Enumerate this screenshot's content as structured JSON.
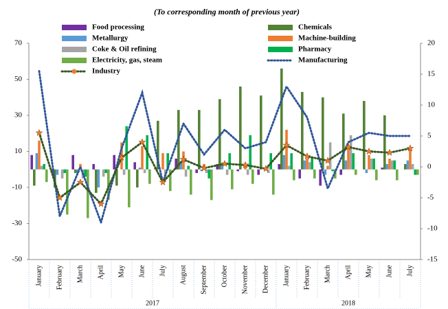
{
  "chart_data": {
    "type": "bar",
    "subtitle": "(To corresponding month of previous year)",
    "categories": [
      "January",
      "February",
      "March",
      "April",
      "May",
      "June",
      "July",
      "August",
      "September",
      "October",
      "November",
      "December",
      "January",
      "February",
      "March",
      "April",
      "May",
      "June",
      "July"
    ],
    "year_groups": [
      {
        "name": "2017",
        "start": 0,
        "end": 11
      },
      {
        "name": "2018",
        "start": 12,
        "end": 18
      }
    ],
    "ylim": [
      -50,
      70
    ],
    "yticks": [
      -50,
      -30,
      -10,
      10,
      30,
      50,
      70
    ],
    "y2lim": [
      -15,
      20
    ],
    "y2ticks": [
      -15,
      -10,
      -5,
      0,
      5,
      10,
      15,
      20
    ],
    "series": [
      {
        "name": "Food processing",
        "color": "#7030a0",
        "values": [
          8,
          -1,
          8,
          3,
          8,
          4,
          1,
          6,
          -2,
          3,
          -1,
          -3,
          3,
          -5,
          -9,
          -3,
          0,
          1,
          0
        ]
      },
      {
        "name": "Chemicals",
        "color": "#548235",
        "values": [
          -9,
          -10,
          -2,
          -13,
          -9,
          -10,
          27,
          33,
          33,
          39,
          46,
          41,
          56,
          43,
          40,
          31,
          38,
          30,
          3
        ]
      },
      {
        "name": "Metallurgy",
        "color": "#5b9bd5",
        "values": [
          9,
          -3,
          -2,
          -10,
          0,
          1,
          0,
          4,
          -1,
          3,
          0,
          0,
          8,
          5,
          -3,
          5,
          -2,
          3,
          5
        ]
      },
      {
        "name": "Machine-building",
        "color": "#ed7d31",
        "values": [
          16,
          0,
          3,
          0,
          15,
          13,
          9,
          10,
          3,
          0,
          3,
          0,
          22,
          6,
          2,
          12,
          8,
          6,
          11
        ]
      },
      {
        "name": "Coke & Oil refining",
        "color": "#a5a5a5",
        "values": [
          2,
          -5,
          -5,
          -4,
          -3,
          -2,
          -5,
          -4,
          -2,
          -3,
          -3,
          -2,
          2,
          4,
          15,
          19,
          6,
          5,
          3
        ]
      },
      {
        "name": "Pharmacy",
        "color": "#00b050",
        "values": [
          3,
          -2,
          -4,
          -2,
          24,
          19,
          9,
          2,
          -5,
          9,
          19,
          9,
          9,
          7,
          -1,
          9,
          6,
          5,
          -3
        ]
      },
      {
        "name": "Electricity, gas, steam",
        "color": "#70ad47",
        "values": [
          -7,
          -25,
          -27,
          -17,
          -21,
          -8,
          -12,
          -14,
          -17,
          -11,
          -8,
          -14,
          -6,
          -5,
          -5,
          -3,
          -6,
          -6,
          -3
        ]
      },
      {
        "name": "Manufacturing",
        "type": "line",
        "axis": "y2",
        "color": "#2f5597",
        "values": [
          15.5,
          -8,
          0,
          -9,
          3,
          12,
          -2.5,
          7,
          2,
          6,
          3,
          4,
          13,
          8,
          -3.5,
          4,
          5.5,
          5,
          5
        ]
      },
      {
        "name": "Industry",
        "type": "line",
        "axis": "y2",
        "color": "#375623",
        "marker_color": "#ed7d31",
        "values": [
          5.5,
          -5,
          -2.5,
          -6,
          1.5,
          4,
          -2.5,
          1.2,
          -0.2,
          0.5,
          0.3,
          -0.3,
          3.5,
          1.7,
          1,
          3.2,
          2.5,
          2.3,
          3
        ]
      }
    ]
  }
}
